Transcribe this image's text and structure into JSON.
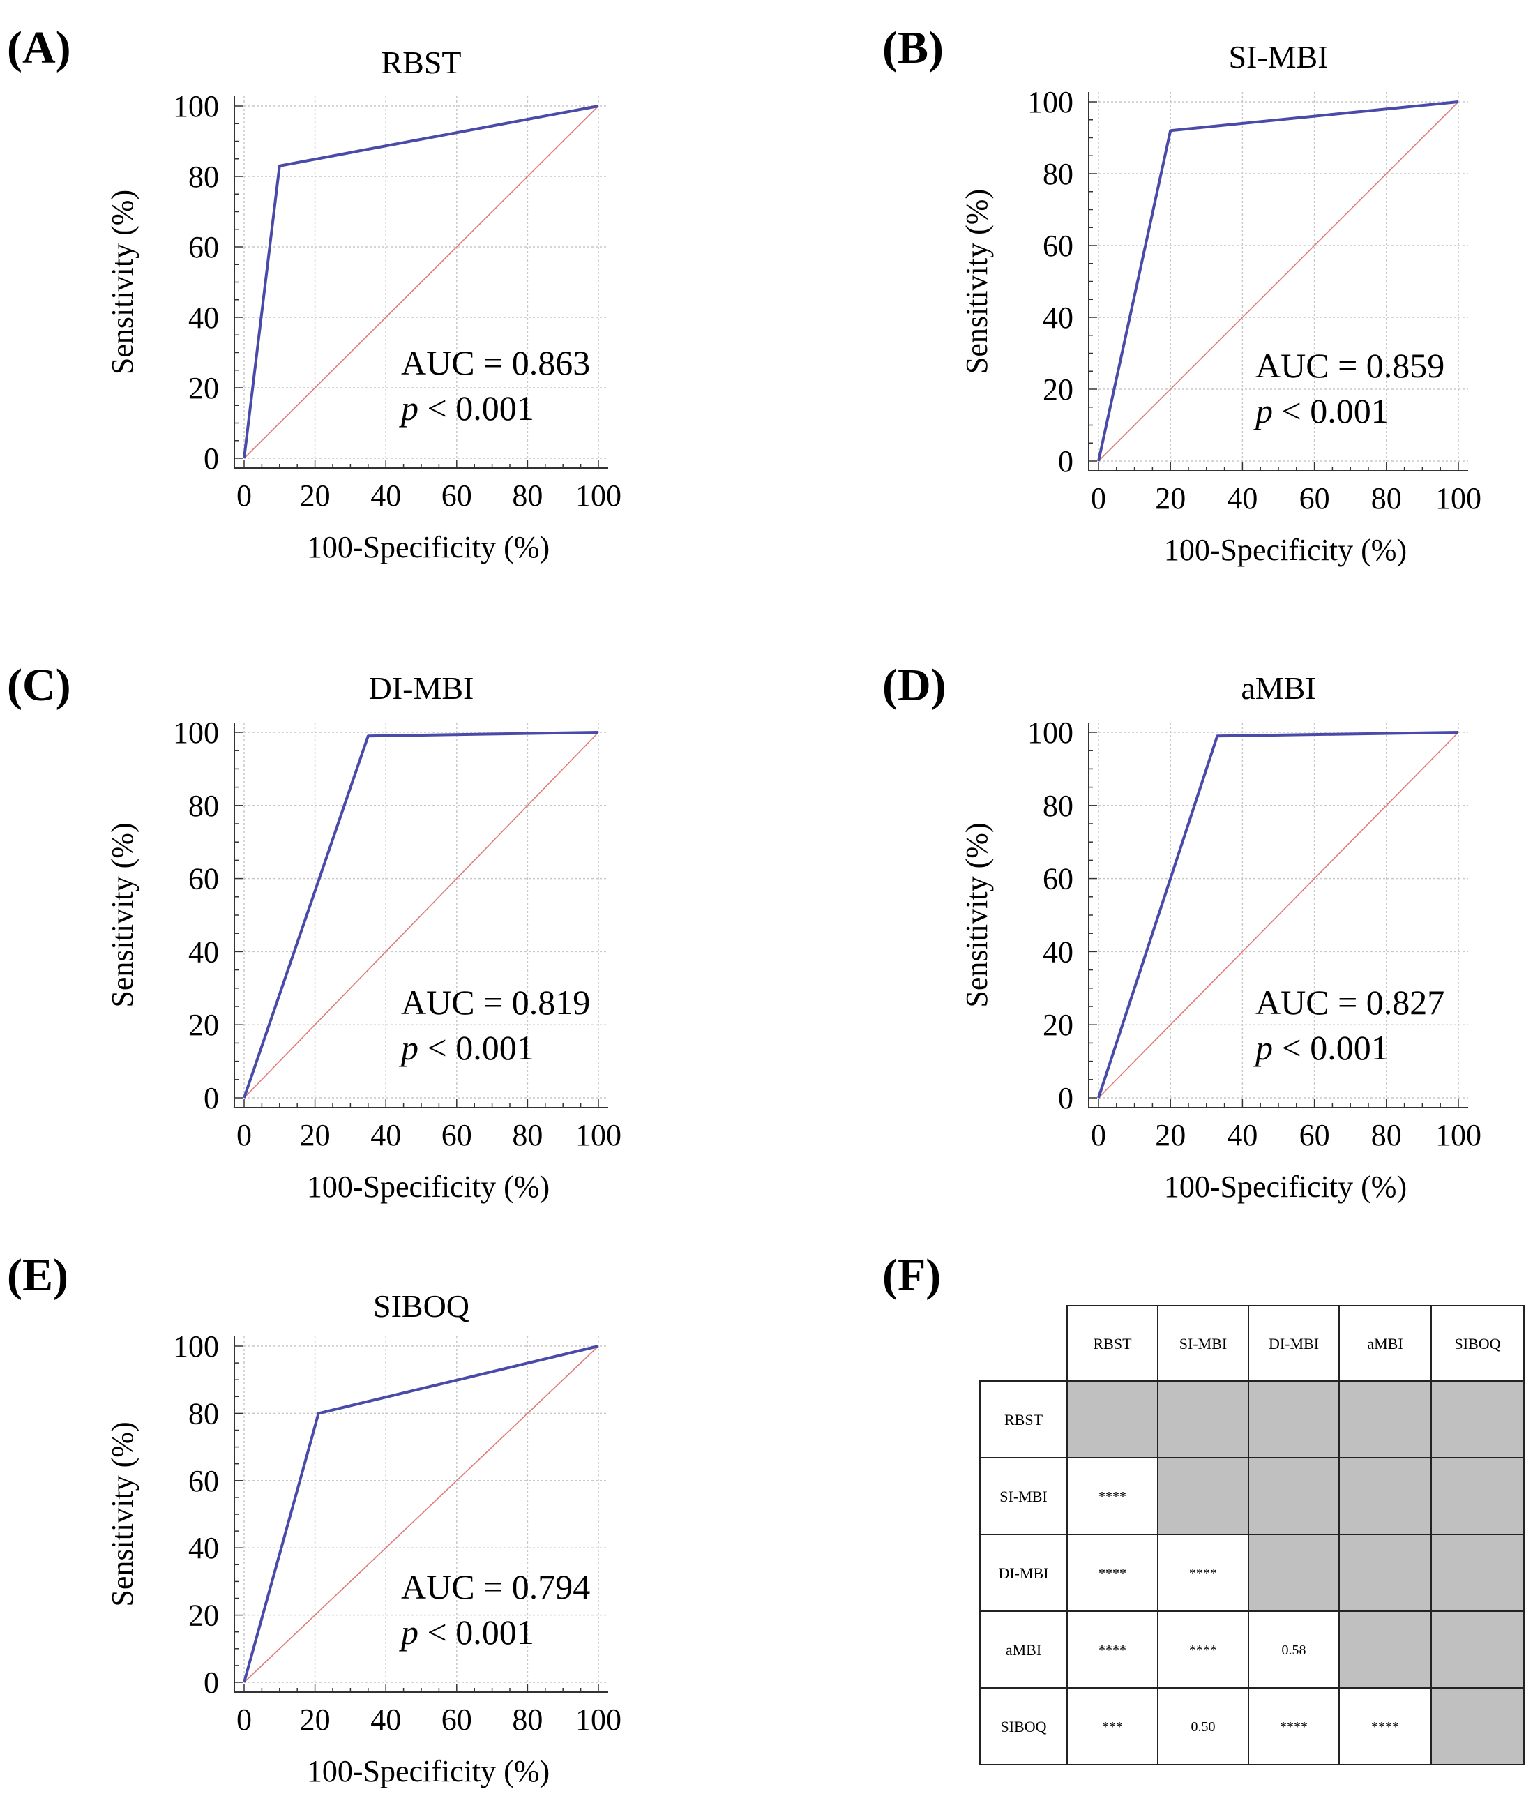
{
  "chart_data": [
    {
      "panel": "(A)",
      "type": "line",
      "title": "RBST",
      "xlabel": "100-Specificity (%)",
      "ylabel": "Sensitivity (%)",
      "xlim": [
        0,
        100
      ],
      "ylim": [
        0,
        100
      ],
      "xticks": [
        "0",
        "20",
        "40",
        "60",
        "80",
        "100"
      ],
      "yticks": [
        "0",
        "20",
        "40",
        "60",
        "80",
        "100"
      ],
      "series": [
        {
          "name": "ROC",
          "color": "#4a4aa8",
          "x": [
            0,
            10,
            100
          ],
          "y": [
            0,
            83,
            100
          ]
        },
        {
          "name": "Reference",
          "color": "#e07a7a",
          "x": [
            0,
            100
          ],
          "y": [
            0,
            100
          ]
        }
      ],
      "annotation": {
        "auc": "AUC = 0.863",
        "p_symbol": "p",
        "p_rest": " < 0.001"
      }
    },
    {
      "panel": "(B)",
      "type": "line",
      "title": "SI-MBI",
      "xlabel": "100-Specificity (%)",
      "ylabel": "Sensitivity (%)",
      "xlim": [
        0,
        100
      ],
      "ylim": [
        0,
        100
      ],
      "xticks": [
        "0",
        "20",
        "40",
        "60",
        "80",
        "100"
      ],
      "yticks": [
        "0",
        "20",
        "40",
        "60",
        "80",
        "100"
      ],
      "series": [
        {
          "name": "ROC",
          "color": "#4a4aa8",
          "x": [
            0,
            20,
            100
          ],
          "y": [
            0,
            92,
            100
          ]
        },
        {
          "name": "Reference",
          "color": "#e07a7a",
          "x": [
            0,
            100
          ],
          "y": [
            0,
            100
          ]
        }
      ],
      "annotation": {
        "auc": "AUC = 0.859",
        "p_symbol": "p",
        "p_rest": " < 0.001"
      }
    },
    {
      "panel": "(C)",
      "type": "line",
      "title": "DI-MBI",
      "xlabel": "100-Specificity (%)",
      "ylabel": "Sensitivity (%)",
      "xlim": [
        0,
        100
      ],
      "ylim": [
        0,
        100
      ],
      "xticks": [
        "0",
        "20",
        "40",
        "60",
        "80",
        "100"
      ],
      "yticks": [
        "0",
        "20",
        "40",
        "60",
        "80",
        "100"
      ],
      "series": [
        {
          "name": "ROC",
          "color": "#4a4aa8",
          "x": [
            0,
            35,
            100
          ],
          "y": [
            0,
            99,
            100
          ]
        },
        {
          "name": "Reference",
          "color": "#e07a7a",
          "x": [
            0,
            100
          ],
          "y": [
            0,
            100
          ]
        }
      ],
      "annotation": {
        "auc": "AUC = 0.819",
        "p_symbol": "p",
        "p_rest": " < 0.001"
      }
    },
    {
      "panel": "(D)",
      "type": "line",
      "title": "aMBI",
      "xlabel": "100-Specificity (%)",
      "ylabel": "Sensitivity (%)",
      "xlim": [
        0,
        100
      ],
      "ylim": [
        0,
        100
      ],
      "xticks": [
        "0",
        "20",
        "40",
        "60",
        "80",
        "100"
      ],
      "yticks": [
        "0",
        "20",
        "40",
        "60",
        "80",
        "100"
      ],
      "series": [
        {
          "name": "ROC",
          "color": "#4a4aa8",
          "x": [
            0,
            33,
            100
          ],
          "y": [
            0,
            99,
            100
          ]
        },
        {
          "name": "Reference",
          "color": "#e07a7a",
          "x": [
            0,
            100
          ],
          "y": [
            0,
            100
          ]
        }
      ],
      "annotation": {
        "auc": "AUC = 0.827",
        "p_symbol": "p",
        "p_rest": " < 0.001"
      }
    },
    {
      "panel": "(E)",
      "type": "line",
      "title": "SIBOQ",
      "xlabel": "100-Specificity (%)",
      "ylabel": "Sensitivity (%)",
      "xlim": [
        0,
        100
      ],
      "ylim": [
        0,
        100
      ],
      "xticks": [
        "0",
        "20",
        "40",
        "60",
        "80",
        "100"
      ],
      "yticks": [
        "0",
        "20",
        "40",
        "60",
        "80",
        "100"
      ],
      "series": [
        {
          "name": "ROC",
          "color": "#4a4aa8",
          "x": [
            0,
            21,
            100
          ],
          "y": [
            0,
            80,
            100
          ]
        },
        {
          "name": "Reference",
          "color": "#e07a7a",
          "x": [
            0,
            100
          ],
          "y": [
            0,
            100
          ]
        }
      ],
      "annotation": {
        "auc": "AUC = 0.794",
        "p_symbol": "p",
        "p_rest": " < 0.001"
      }
    },
    {
      "panel": "(F)",
      "type": "table",
      "columns": [
        "RBST",
        "SI-MBI",
        "DI-MBI",
        "aMBI",
        "SIBOQ"
      ],
      "rows": [
        {
          "label": "RBST",
          "cells": [
            null,
            null,
            null,
            null,
            null
          ]
        },
        {
          "label": "SI-MBI",
          "cells": [
            "****",
            null,
            null,
            null,
            null
          ]
        },
        {
          "label": "DI-MBI",
          "cells": [
            "****",
            "****",
            null,
            null,
            null
          ]
        },
        {
          "label": "aMBI",
          "cells": [
            "****",
            "****",
            "0.58",
            null,
            null
          ]
        },
        {
          "label": "SIBOQ",
          "cells": [
            "***",
            "0.50",
            "****",
            "****",
            null
          ]
        }
      ],
      "shade_color": "#c0c0c0"
    }
  ]
}
